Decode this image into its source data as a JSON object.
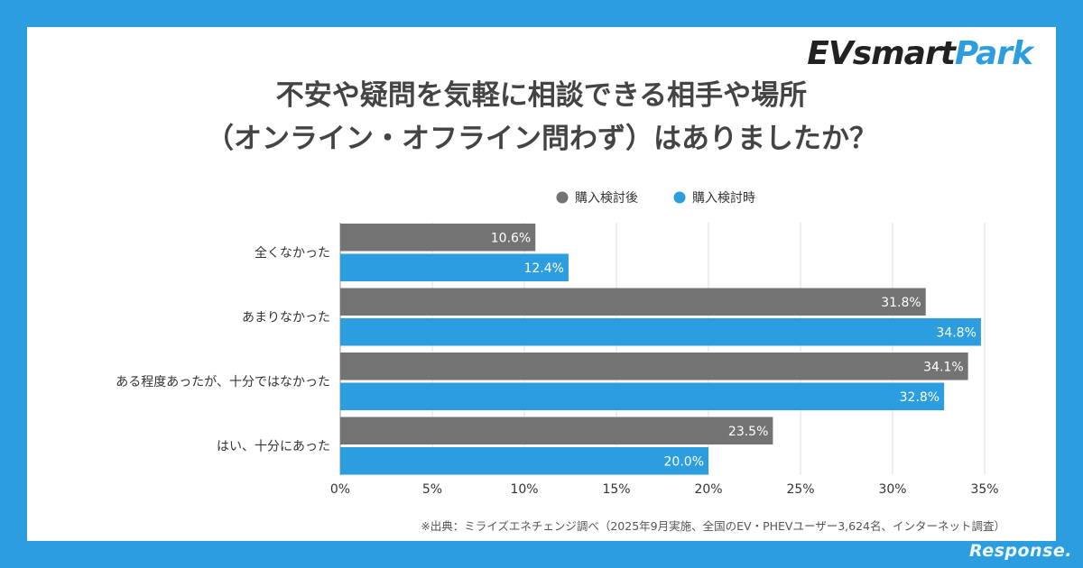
{
  "brand": {
    "part1": "EVsmart",
    "part2": "Park"
  },
  "watermark": "Response.",
  "source_note": "※出典：ミライズエネチェンジ調べ（2025年9月実施、全国のEV・PHEVユーザー3,624名、インターネット調査）",
  "colors": {
    "series_after": "#737373",
    "series_during": "#2c9ee0",
    "background": "#2c9ee0"
  },
  "chart_data": {
    "type": "bar",
    "orientation": "horizontal",
    "title_line1": "不安や疑問を気軽に相談できる相手や場所",
    "title_line2": "（オンライン・オフライン問わず）はありましたか？",
    "categories": [
      "全くなかった",
      "あまりなかった",
      "ある程度あったが、十分ではなかった",
      "はい、十分にあった"
    ],
    "series": [
      {
        "name": "購入検討後",
        "color": "#737373",
        "values": [
          10.6,
          31.8,
          34.1,
          23.5
        ]
      },
      {
        "name": "購入検討時",
        "color": "#2c9ee0",
        "values": [
          12.4,
          34.8,
          32.8,
          20.0
        ]
      }
    ],
    "value_labels": [
      [
        "10.6%",
        "31.8%",
        "34.1%",
        "23.5%"
      ],
      [
        "12.4%",
        "34.8%",
        "32.8%",
        "20.0%"
      ]
    ],
    "xlim": [
      0,
      35
    ],
    "xticks": [
      0,
      5,
      10,
      15,
      20,
      25,
      30,
      35
    ],
    "xtick_labels": [
      "0%",
      "5%",
      "10%",
      "15%",
      "20%",
      "25%",
      "30%",
      "35%"
    ],
    "grid": true,
    "legend_position": "top-right"
  }
}
